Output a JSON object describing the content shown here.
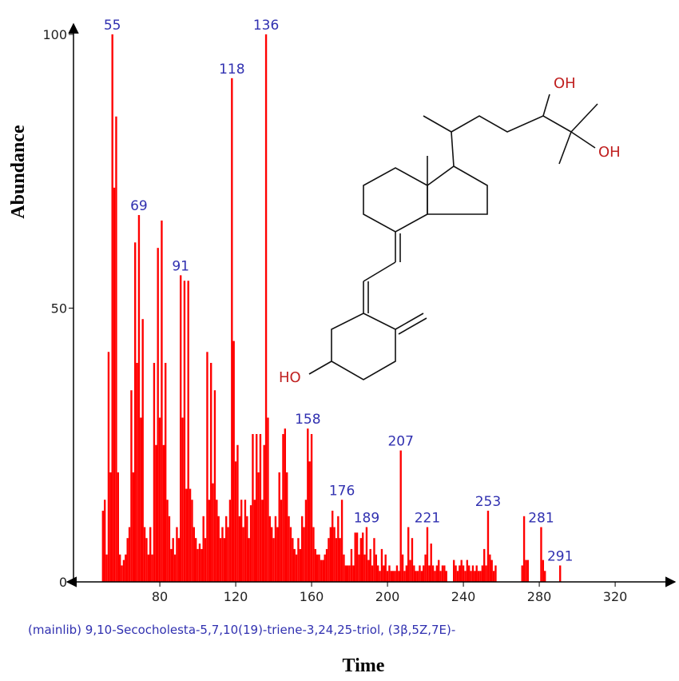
{
  "chart_data": {
    "type": "bar",
    "subtitle": "(mainlib) 9,10-Secocholesta-5,7,10(19)-triene-3,24,25-triol, (3β,5Z,7E)-",
    "x_label": "Time",
    "y_label": "Abundance",
    "color": "#ff0000",
    "x": [
      50,
      51,
      52,
      53,
      54,
      55,
      56,
      57,
      58,
      59,
      60,
      61,
      62,
      63,
      64,
      65,
      66,
      67,
      68,
      69,
      70,
      71,
      72,
      73,
      74,
      75,
      76,
      77,
      78,
      79,
      80,
      81,
      82,
      83,
      84,
      85,
      86,
      87,
      88,
      89,
      90,
      91,
      92,
      93,
      94,
      95,
      96,
      97,
      98,
      99,
      100,
      101,
      102,
      103,
      104,
      105,
      106,
      107,
      108,
      109,
      110,
      111,
      112,
      113,
      114,
      115,
      116,
      117,
      118,
      119,
      120,
      121,
      122,
      123,
      124,
      125,
      126,
      127,
      128,
      129,
      130,
      131,
      132,
      133,
      134,
      135,
      136,
      137,
      138,
      139,
      140,
      141,
      142,
      143,
      144,
      145,
      146,
      147,
      148,
      149,
      150,
      151,
      152,
      153,
      154,
      155,
      156,
      157,
      158,
      159,
      160,
      161,
      162,
      163,
      164,
      165,
      166,
      167,
      168,
      169,
      170,
      171,
      172,
      173,
      174,
      175,
      176,
      177,
      178,
      179,
      180,
      181,
      182,
      183,
      184,
      185,
      186,
      187,
      188,
      189,
      190,
      191,
      192,
      193,
      194,
      195,
      196,
      197,
      198,
      199,
      200,
      201,
      202,
      203,
      204,
      205,
      206,
      207,
      208,
      209,
      210,
      211,
      212,
      213,
      214,
      215,
      216,
      217,
      218,
      219,
      220,
      221,
      222,
      223,
      224,
      225,
      226,
      227,
      228,
      229,
      230,
      231,
      235,
      236,
      237,
      238,
      239,
      240,
      241,
      242,
      243,
      244,
      245,
      246,
      247,
      248,
      249,
      250,
      251,
      252,
      253,
      254,
      255,
      256,
      257,
      271,
      272,
      273,
      274,
      281,
      282,
      283,
      291
    ],
    "values": [
      13,
      15,
      5,
      42,
      20,
      100,
      72,
      85,
      20,
      5,
      3,
      4,
      5,
      8,
      10,
      35,
      20,
      62,
      40,
      67,
      30,
      48,
      10,
      8,
      5,
      10,
      5,
      40,
      25,
      61,
      30,
      66,
      25,
      40,
      15,
      12,
      6,
      8,
      5,
      10,
      8,
      56,
      30,
      55,
      17,
      55,
      17,
      15,
      10,
      8,
      6,
      7,
      6,
      12,
      8,
      42,
      15,
      40,
      18,
      35,
      15,
      12,
      8,
      10,
      8,
      12,
      10,
      15,
      92,
      44,
      22,
      25,
      12,
      15,
      10,
      15,
      12,
      8,
      14,
      27,
      15,
      27,
      20,
      27,
      15,
      25,
      100,
      30,
      12,
      10,
      8,
      12,
      10,
      20,
      15,
      27,
      28,
      20,
      12,
      10,
      8,
      6,
      5,
      8,
      6,
      12,
      10,
      15,
      28,
      22,
      27,
      10,
      6,
      5,
      5,
      4,
      4,
      5,
      6,
      8,
      10,
      13,
      10,
      8,
      12,
      8,
      15,
      5,
      3,
      3,
      3,
      6,
      3,
      9,
      9,
      5,
      8,
      9,
      5,
      10,
      4,
      6,
      3,
      8,
      5,
      3,
      2,
      6,
      3,
      5,
      2,
      3,
      2,
      2,
      2,
      3,
      2,
      24,
      5,
      2,
      3,
      10,
      4,
      8,
      3,
      2,
      2,
      3,
      2,
      3,
      5,
      10,
      3,
      7,
      3,
      2,
      3,
      4,
      2,
      3,
      3,
      2,
      4,
      3,
      2,
      3,
      4,
      3,
      2,
      4,
      3,
      2,
      3,
      2,
      3,
      2,
      2,
      3,
      6,
      3,
      13,
      5,
      4,
      2,
      3,
      3,
      12,
      4,
      4,
      10,
      4,
      2,
      3
    ],
    "peak_labels": [
      55,
      69,
      91,
      118,
      136,
      158,
      176,
      189,
      207,
      221,
      253,
      281,
      291
    ],
    "xlim": [
      34.5,
      350.7
    ],
    "xticks": [
      80,
      120,
      160,
      200,
      240,
      280,
      320
    ],
    "ylim": [
      0,
      100
    ],
    "yticks": [
      0,
      50,
      100
    ],
    "structure_labels": [
      "OH",
      "OH",
      "HO"
    ]
  }
}
